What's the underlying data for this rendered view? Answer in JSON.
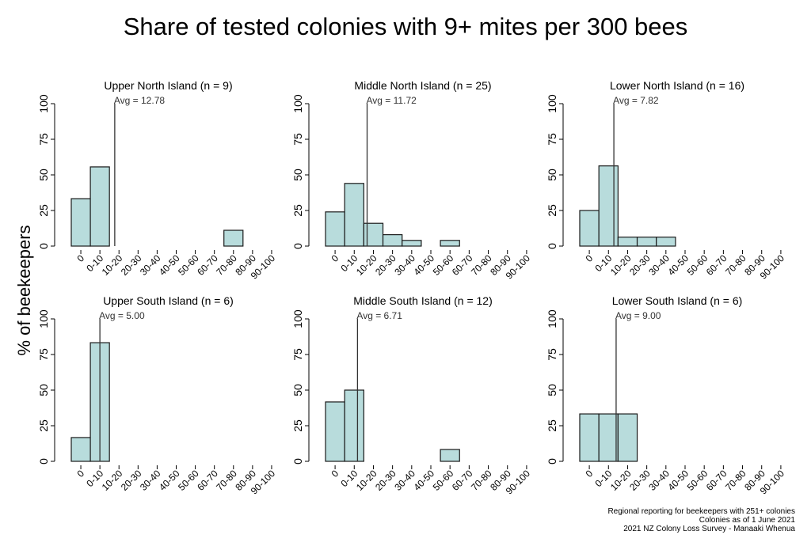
{
  "main_title": "Share of tested colonies with 9+ mites per 300 bees",
  "ylabel": "% of beekeepers",
  "footer": {
    "line1": "Regional reporting for beekeepers with 251+ colonies",
    "line2": "Colonies as of 1 June 2021",
    "line3": "2021 NZ Colony Loss Survey - Manaaki Whenua"
  },
  "colors": {
    "bar_fill": "#b8dcdc",
    "bar_stroke": "#1a1a1a",
    "axis": "#000000",
    "avg_line": "#333333"
  },
  "chart_data": [
    {
      "type": "bar",
      "title": "Upper North Island (n = 9)",
      "categories": [
        "0",
        "0-10",
        "10-20",
        "20-30",
        "30-40",
        "40-50",
        "50-60",
        "60-70",
        "70-80",
        "80-90",
        "90-100"
      ],
      "values": [
        33.3,
        55.6,
        0,
        0,
        0,
        0,
        0,
        0,
        11.1,
        0,
        0
      ],
      "avg_label": "Avg = 12.78",
      "avg": 12.78,
      "yticks": [
        0,
        25,
        50,
        75,
        100
      ],
      "ylim": [
        0,
        100
      ]
    },
    {
      "type": "bar",
      "title": "Middle North Island (n = 25)",
      "categories": [
        "0",
        "0-10",
        "10-20",
        "20-30",
        "30-40",
        "40-50",
        "50-60",
        "60-70",
        "70-80",
        "80-90",
        "90-100"
      ],
      "values": [
        24,
        44,
        16,
        8,
        4,
        0,
        4,
        0,
        0,
        0,
        0
      ],
      "avg_label": "Avg = 11.72",
      "avg": 11.72,
      "yticks": [
        0,
        25,
        50,
        75,
        100
      ],
      "ylim": [
        0,
        100
      ]
    },
    {
      "type": "bar",
      "title": "Lower North Island (n = 16)",
      "categories": [
        "0",
        "0-10",
        "10-20",
        "20-30",
        "30-40",
        "40-50",
        "50-60",
        "60-70",
        "70-80",
        "80-90",
        "90-100"
      ],
      "values": [
        25,
        56.3,
        6.3,
        6.3,
        6.3,
        0,
        0,
        0,
        0,
        0,
        0
      ],
      "avg_label": "Avg = 7.82",
      "avg": 7.82,
      "yticks": [
        0,
        25,
        50,
        75,
        100
      ],
      "ylim": [
        0,
        100
      ]
    },
    {
      "type": "bar",
      "title": "Upper South Island (n = 6)",
      "categories": [
        "0",
        "0-10",
        "10-20",
        "20-30",
        "30-40",
        "40-50",
        "50-60",
        "60-70",
        "70-80",
        "80-90",
        "90-100"
      ],
      "values": [
        16.7,
        83.3,
        0,
        0,
        0,
        0,
        0,
        0,
        0,
        0,
        0
      ],
      "avg_label": "Avg = 5.00",
      "avg": 5.0,
      "yticks": [
        0,
        25,
        50,
        75,
        100
      ],
      "ylim": [
        0,
        100
      ]
    },
    {
      "type": "bar",
      "title": "Middle South Island (n = 12)",
      "categories": [
        "0",
        "0-10",
        "10-20",
        "20-30",
        "30-40",
        "40-50",
        "50-60",
        "60-70",
        "70-80",
        "80-90",
        "90-100"
      ],
      "values": [
        41.7,
        50,
        0,
        0,
        0,
        0,
        8.3,
        0,
        0,
        0,
        0
      ],
      "avg_label": "Avg = 6.71",
      "avg": 6.71,
      "yticks": [
        0,
        25,
        50,
        75,
        100
      ],
      "ylim": [
        0,
        100
      ]
    },
    {
      "type": "bar",
      "title": "Lower South Island (n = 6)",
      "categories": [
        "0",
        "0-10",
        "10-20",
        "20-30",
        "30-40",
        "40-50",
        "50-60",
        "60-70",
        "70-80",
        "80-90",
        "90-100"
      ],
      "values": [
        33.3,
        33.3,
        33.3,
        0,
        0,
        0,
        0,
        0,
        0,
        0,
        0
      ],
      "avg_label": "Avg = 9.00",
      "avg": 9.0,
      "yticks": [
        0,
        25,
        50,
        75,
        100
      ],
      "ylim": [
        0,
        100
      ]
    }
  ]
}
